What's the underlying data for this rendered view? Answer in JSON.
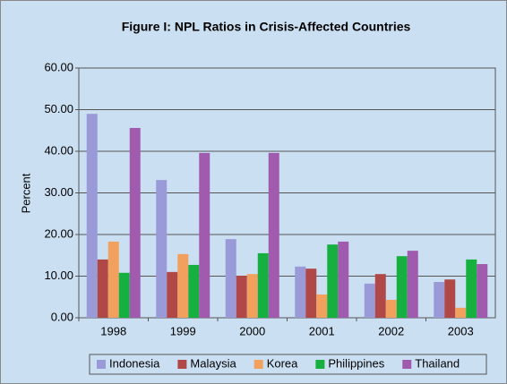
{
  "chart_data": {
    "type": "bar",
    "title": "Figure I: NPL Ratios in Crisis-Affected Countries",
    "y_label": "Percent",
    "categories": [
      "1998",
      "1999",
      "2000",
      "2001",
      "2002",
      "2003"
    ],
    "series": [
      {
        "name": "Indonesia",
        "color": "#9a9ad8",
        "values": [
          49.0,
          33.1,
          18.9,
          12.3,
          8.2,
          8.6
        ]
      },
      {
        "name": "Malaysia",
        "color": "#b04848",
        "values": [
          14.0,
          11.0,
          10.1,
          11.8,
          10.5,
          9.2
        ]
      },
      {
        "name": "Korea",
        "color": "#f2a05e",
        "values": [
          18.3,
          15.3,
          10.5,
          5.6,
          4.3,
          2.4
        ]
      },
      {
        "name": "Philippines",
        "color": "#16b040",
        "values": [
          10.8,
          12.7,
          15.5,
          17.6,
          14.8,
          14.0
        ]
      },
      {
        "name": "Thailand",
        "color": "#a05aae",
        "values": [
          45.6,
          39.6,
          39.6,
          18.3,
          16.1,
          12.9
        ]
      }
    ],
    "ylim": [
      0,
      60
    ],
    "yticks": [
      {
        "value": 0,
        "label": "0.00"
      },
      {
        "value": 10,
        "label": "10.00"
      },
      {
        "value": 20,
        "label": "20.00"
      },
      {
        "value": 30,
        "label": "30.00"
      },
      {
        "value": 40,
        "label": "40.00"
      },
      {
        "value": 50,
        "label": "50.00"
      },
      {
        "value": 60,
        "label": "60.00"
      }
    ],
    "grid": true,
    "legend": "bottom"
  }
}
